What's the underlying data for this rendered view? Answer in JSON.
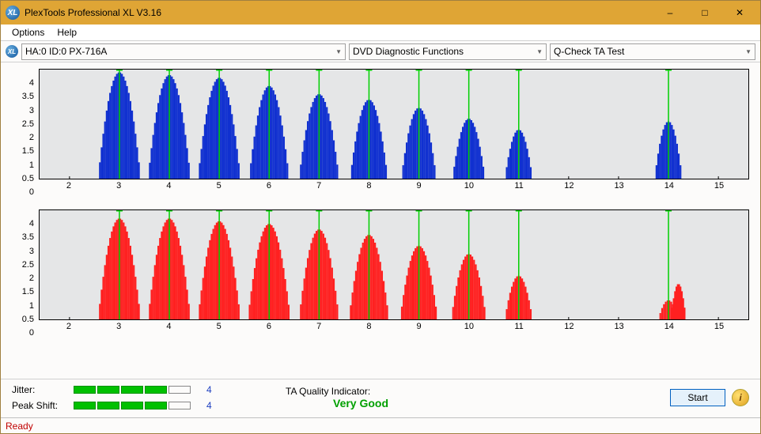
{
  "window": {
    "title": "PlexTools Professional XL V3.16"
  },
  "menu": {
    "options": "Options",
    "help": "Help"
  },
  "toolbar": {
    "drive": "HA:0 ID:0  PX-716A",
    "func": "DVD Diagnostic Functions",
    "test": "Q-Check TA Test"
  },
  "charts": {
    "x_min": 1.4,
    "x_max": 15.6,
    "x_ticks": [
      2,
      3,
      4,
      5,
      6,
      7,
      8,
      9,
      10,
      11,
      12,
      13,
      14,
      15
    ],
    "y_max": 4.0,
    "y_ticks": [
      0,
      0.5,
      1,
      1.5,
      2,
      2.5,
      3,
      3.5,
      4
    ],
    "plot_bg": "#e5e6e7",
    "marker_color": "#00d000",
    "top": {
      "bar_color": "#1030d0",
      "peaks": [
        {
          "x": 3,
          "h": 3.9,
          "w": 0.85
        },
        {
          "x": 4,
          "h": 3.8,
          "w": 0.85
        },
        {
          "x": 5,
          "h": 3.7,
          "w": 0.85
        },
        {
          "x": 6,
          "h": 3.4,
          "w": 0.8
        },
        {
          "x": 7,
          "h": 3.1,
          "w": 0.8
        },
        {
          "x": 8,
          "h": 2.9,
          "w": 0.75
        },
        {
          "x": 9,
          "h": 2.6,
          "w": 0.7
        },
        {
          "x": 10,
          "h": 2.2,
          "w": 0.65
        },
        {
          "x": 11,
          "h": 1.8,
          "w": 0.55
        },
        {
          "x": 14,
          "h": 2.1,
          "w": 0.55
        }
      ],
      "tlines": [
        3,
        4,
        5,
        6,
        7,
        8,
        9,
        10,
        11,
        14
      ]
    },
    "bottom": {
      "bar_color": "#ff2020",
      "peaks": [
        {
          "x": 3,
          "h": 3.7,
          "w": 0.85
        },
        {
          "x": 4,
          "h": 3.7,
          "w": 0.85
        },
        {
          "x": 5,
          "h": 3.6,
          "w": 0.85
        },
        {
          "x": 6,
          "h": 3.5,
          "w": 0.85
        },
        {
          "x": 7,
          "h": 3.3,
          "w": 0.8
        },
        {
          "x": 8,
          "h": 3.1,
          "w": 0.8
        },
        {
          "x": 9,
          "h": 2.7,
          "w": 0.75
        },
        {
          "x": 10,
          "h": 2.4,
          "w": 0.7
        },
        {
          "x": 11,
          "h": 1.6,
          "w": 0.55
        },
        {
          "x": 14,
          "h": 0.7,
          "w": 0.4
        },
        {
          "x": 14.2,
          "h": 1.3,
          "w": 0.3
        }
      ],
      "tlines": [
        3,
        4,
        5,
        6,
        7,
        8,
        9,
        10,
        11,
        14
      ]
    }
  },
  "metrics": {
    "jitter_label": "Jitter:",
    "jitter_on": 4,
    "jitter_total": 5,
    "jitter_value": "4",
    "peak_label": "Peak Shift:",
    "peak_on": 4,
    "peak_total": 5,
    "peak_value": "4"
  },
  "taq": {
    "label": "TA Quality Indicator:",
    "value": "Very Good",
    "value_color": "#00a000"
  },
  "start": {
    "label": "Start"
  },
  "status": {
    "text": "Ready",
    "text_color": "#c00000"
  }
}
